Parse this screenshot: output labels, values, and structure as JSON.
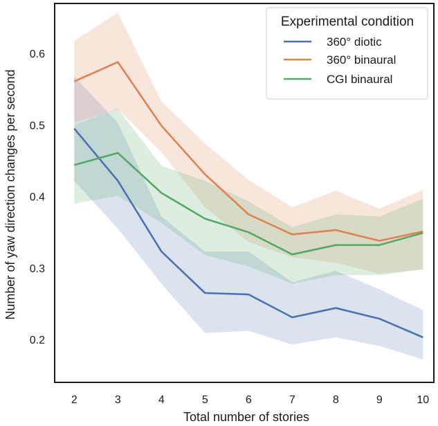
{
  "chart_data": {
    "type": "line",
    "title": "",
    "xlabel": "Total number of stories",
    "ylabel": "Number of yaw direction changes per second",
    "x": [
      2,
      3,
      4,
      5,
      6,
      7,
      8,
      9,
      10
    ],
    "xlim": [
      1.55,
      10.25
    ],
    "ylim": [
      0.14,
      0.67
    ],
    "yticks": [
      0.2,
      0.3,
      0.4,
      0.5,
      0.6
    ],
    "xticks": [
      2,
      3,
      4,
      5,
      6,
      7,
      8,
      9,
      10
    ],
    "legend": {
      "title": "Experimental condition",
      "position": "top-right"
    },
    "series": [
      {
        "name": "360° diotic",
        "color": "#4c72b0",
        "values": [
          0.495,
          0.422,
          0.323,
          0.265,
          0.263,
          0.231,
          0.244,
          0.229,
          0.203
        ],
        "lower": [
          0.422,
          0.355,
          0.278,
          0.209,
          0.212,
          0.193,
          0.203,
          0.191,
          0.172
        ],
        "upper": [
          0.568,
          0.503,
          0.372,
          0.323,
          0.323,
          0.28,
          0.296,
          0.27,
          0.241
        ]
      },
      {
        "name": "360° binaural",
        "color": "#dd8452",
        "values": [
          0.561,
          0.588,
          0.499,
          0.431,
          0.375,
          0.347,
          0.353,
          0.338,
          0.351
        ],
        "lower": [
          0.503,
          0.522,
          0.462,
          0.385,
          0.336,
          0.315,
          0.307,
          0.292,
          0.298
        ],
        "upper": [
          0.618,
          0.657,
          0.533,
          0.474,
          0.423,
          0.385,
          0.408,
          0.383,
          0.409
        ]
      },
      {
        "name": "CGI binaural",
        "color": "#55a868",
        "values": [
          0.444,
          0.461,
          0.405,
          0.369,
          0.35,
          0.319,
          0.332,
          0.332,
          0.349
        ],
        "lower": [
          0.39,
          0.401,
          0.363,
          0.318,
          0.302,
          0.278,
          0.29,
          0.29,
          0.298
        ],
        "upper": [
          0.5,
          0.523,
          0.443,
          0.422,
          0.393,
          0.357,
          0.375,
          0.372,
          0.397
        ]
      }
    ]
  }
}
